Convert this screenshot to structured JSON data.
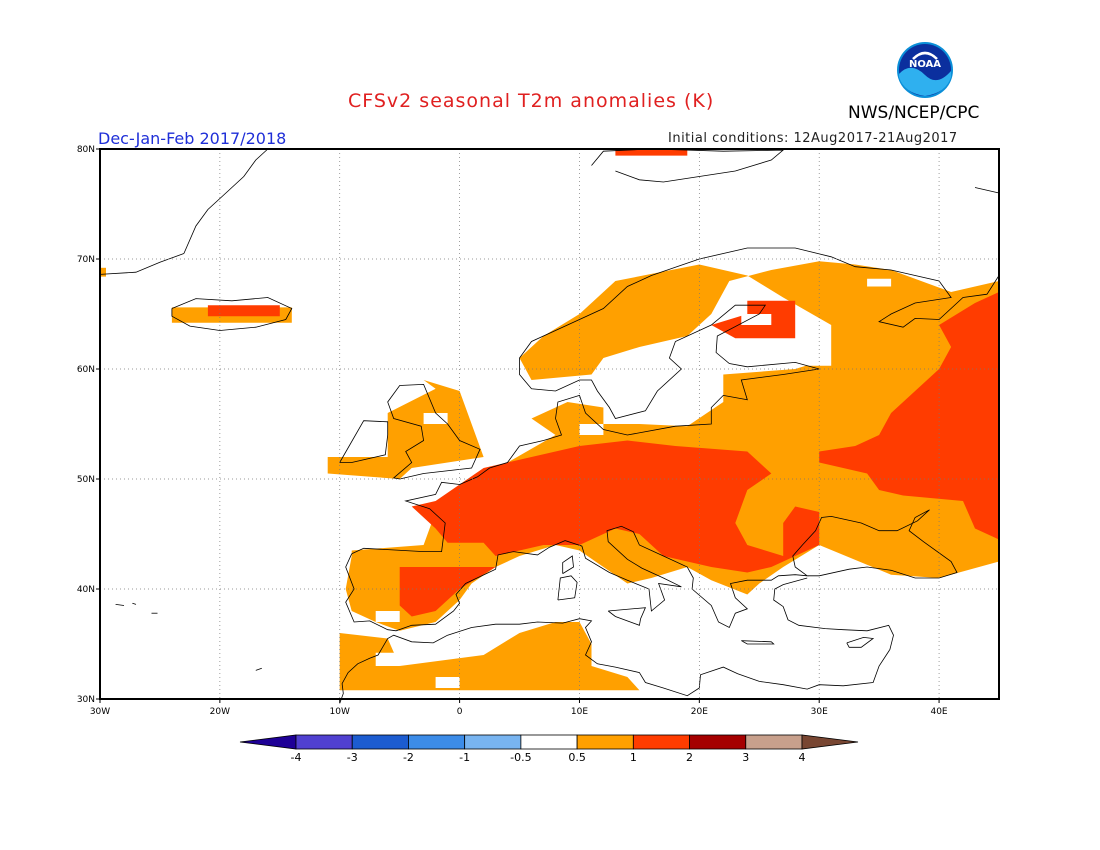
{
  "header": {
    "title": "CFSv2 seasonal T2m anomalies (K)",
    "period": "Dec-Jan-Feb 2017/2018",
    "initial_conditions": "Initial conditions: 12Aug2017-21Aug2017",
    "agency": "NWS/NCEP/CPC",
    "logo_text": "NOAA"
  },
  "map": {
    "lon_range": [
      -30,
      45
    ],
    "lat_range": [
      30,
      80
    ],
    "lat_labels": [
      "80N",
      "70N",
      "60N",
      "50N",
      "40N",
      "30N"
    ],
    "lon_labels": [
      "30W",
      "20W",
      "10W",
      "0",
      "10E",
      "20E",
      "30E",
      "40E"
    ],
    "gridlines": "dotted"
  },
  "colorbar": {
    "labels": [
      "-4",
      "-3",
      "-2",
      "-1",
      "-0.5",
      "0.5",
      "1",
      "2",
      "3",
      "4"
    ],
    "colors": [
      "#1e0096",
      "#5040d0",
      "#1c5cd0",
      "#3c8ce8",
      "#78b4f0",
      "#ffffff",
      "#ffa000",
      "#ff3c00",
      "#a50000",
      "#c8a08c",
      "#784632"
    ]
  }
}
